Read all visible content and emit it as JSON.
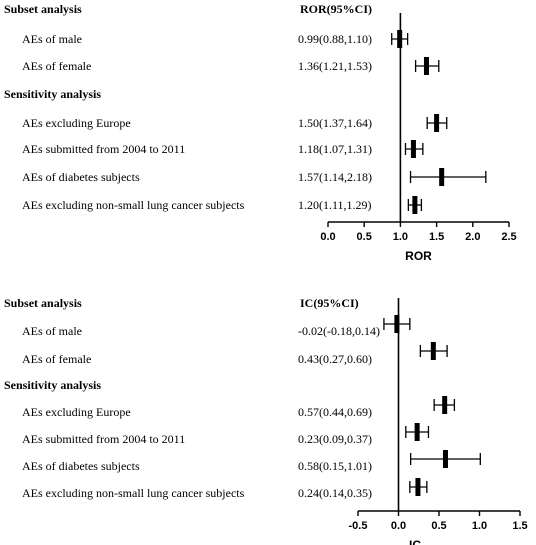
{
  "chart_data": [
    {
      "type": "forest",
      "column_headers": {
        "label": "Subset analysis",
        "value": "ROR(95%CI)"
      },
      "xlabel": "ROR",
      "xlim": [
        0,
        2.5
      ],
      "ticks": [
        "0.0",
        "0.5",
        "1.0",
        "1.5",
        "2.0",
        "2.5"
      ],
      "reference_line": 1.0,
      "rows": [
        {
          "kind": "item",
          "label": "AEs of male",
          "text": "0.99(0.88,1.10)",
          "est": 0.99,
          "lo": 0.88,
          "hi": 1.1
        },
        {
          "kind": "item",
          "label": "AEs of female",
          "text": "1.36(1.21,1.53)",
          "est": 1.36,
          "lo": 1.21,
          "hi": 1.53
        },
        {
          "kind": "section",
          "label": "Sensitivity analysis"
        },
        {
          "kind": "item",
          "label": "AEs excluding Europe",
          "text": "1.50(1.37,1.64)",
          "est": 1.5,
          "lo": 1.37,
          "hi": 1.64
        },
        {
          "kind": "item",
          "label": "AEs submitted from 2004 to 2011",
          "text": "1.18(1.07,1.31)",
          "est": 1.18,
          "lo": 1.07,
          "hi": 1.31
        },
        {
          "kind": "item",
          "label": "AEs of diabetes subjects",
          "text": "1.57(1.14,2.18)",
          "est": 1.57,
          "lo": 1.14,
          "hi": 2.18
        },
        {
          "kind": "item",
          "label": "AEs excluding non-small lung cancer subjects",
          "text": "1.20(1.11,1.29)",
          "est": 1.2,
          "lo": 1.11,
          "hi": 1.29
        }
      ]
    },
    {
      "type": "forest",
      "column_headers": {
        "label": "Subset analysis",
        "value": "IC(95%CI)"
      },
      "xlabel": "IC",
      "xlim": [
        -0.5,
        1.5
      ],
      "ticks": [
        "-0.5",
        "0.0",
        "0.5",
        "1.0",
        "1.5"
      ],
      "reference_line": 0.0,
      "rows": [
        {
          "kind": "item",
          "label": "AEs of male",
          "text": "-0.02(-0.18,0.14)",
          "est": -0.02,
          "lo": -0.18,
          "hi": 0.14
        },
        {
          "kind": "item",
          "label": "AEs of female",
          "text": "0.43(0.27,0.60)",
          "est": 0.43,
          "lo": 0.27,
          "hi": 0.6
        },
        {
          "kind": "section",
          "label": "Sensitivity analysis"
        },
        {
          "kind": "item",
          "label": "AEs excluding Europe",
          "text": "0.57(0.44,0.69)",
          "est": 0.57,
          "lo": 0.44,
          "hi": 0.69
        },
        {
          "kind": "item",
          "label": "AEs submitted from 2004 to 2011",
          "text": "0.23(0.09,0.37)",
          "est": 0.23,
          "lo": 0.09,
          "hi": 0.37
        },
        {
          "kind": "item",
          "label": "AEs of diabetes subjects",
          "text": "0.58(0.15,1.01)",
          "est": 0.58,
          "lo": 0.15,
          "hi": 1.01
        },
        {
          "kind": "item",
          "label": "AEs excluding non-small lung cancer subjects",
          "text": "0.24(0.14,0.35)",
          "est": 0.24,
          "lo": 0.14,
          "hi": 0.35
        }
      ]
    }
  ]
}
